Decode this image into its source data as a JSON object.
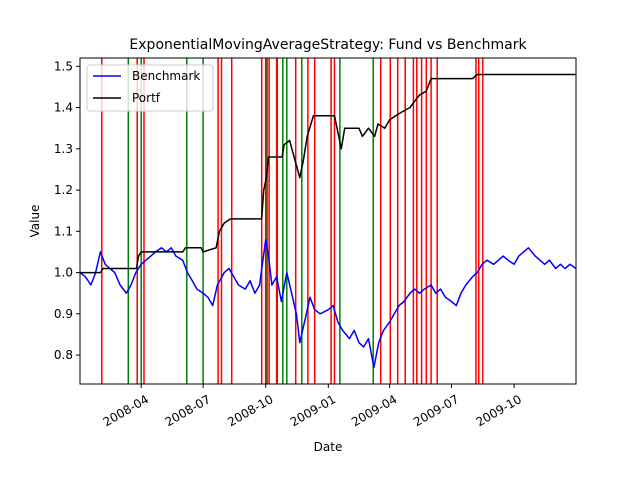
{
  "chart_data": {
    "type": "line",
    "title": "ExponentialMovingAverageStrategy: Fund vs Benchmark",
    "xlabel": "Date",
    "ylabel": "Value",
    "xlim": [
      "2008-01-02",
      "2009-12-31"
    ],
    "ylim": [
      0.73,
      1.52
    ],
    "x_ticks": [
      "2008-04",
      "2008-07",
      "2008-10",
      "2009-01",
      "2009-04",
      "2009-07",
      "2009-10"
    ],
    "y_ticks": [
      0.8,
      0.9,
      1.0,
      1.1,
      1.2,
      1.3,
      1.4,
      1.5
    ],
    "legend_position": "top-left",
    "grid": false,
    "series": [
      {
        "name": "Benchmark",
        "color": "#0000ff",
        "points": [
          [
            "2008-01-02",
            1.0
          ],
          [
            "2008-01-10",
            0.99
          ],
          [
            "2008-01-18",
            0.97
          ],
          [
            "2008-01-25",
            1.0
          ],
          [
            "2008-02-01",
            1.05
          ],
          [
            "2008-02-08",
            1.02
          ],
          [
            "2008-02-15",
            1.01
          ],
          [
            "2008-02-22",
            1.0
          ],
          [
            "2008-03-01",
            0.97
          ],
          [
            "2008-03-10",
            0.95
          ],
          [
            "2008-03-17",
            0.97
          ],
          [
            "2008-03-24",
            1.0
          ],
          [
            "2008-04-01",
            1.02
          ],
          [
            "2008-04-08",
            1.03
          ],
          [
            "2008-04-15",
            1.04
          ],
          [
            "2008-04-22",
            1.05
          ],
          [
            "2008-05-01",
            1.06
          ],
          [
            "2008-05-08",
            1.05
          ],
          [
            "2008-05-15",
            1.06
          ],
          [
            "2008-05-22",
            1.04
          ],
          [
            "2008-06-01",
            1.03
          ],
          [
            "2008-06-08",
            1.0
          ],
          [
            "2008-06-15",
            0.98
          ],
          [
            "2008-06-22",
            0.96
          ],
          [
            "2008-07-01",
            0.95
          ],
          [
            "2008-07-08",
            0.94
          ],
          [
            "2008-07-15",
            0.92
          ],
          [
            "2008-07-22",
            0.97
          ],
          [
            "2008-08-01",
            1.0
          ],
          [
            "2008-08-08",
            1.01
          ],
          [
            "2008-08-15",
            0.99
          ],
          [
            "2008-08-22",
            0.97
          ],
          [
            "2008-09-01",
            0.96
          ],
          [
            "2008-09-08",
            0.98
          ],
          [
            "2008-09-15",
            0.95
          ],
          [
            "2008-09-22",
            0.97
          ],
          [
            "2008-10-01",
            1.08
          ],
          [
            "2008-10-05",
            1.04
          ],
          [
            "2008-10-10",
            0.97
          ],
          [
            "2008-10-17",
            0.99
          ],
          [
            "2008-10-24",
            0.93
          ],
          [
            "2008-11-01",
            1.0
          ],
          [
            "2008-11-08",
            0.95
          ],
          [
            "2008-11-15",
            0.9
          ],
          [
            "2008-11-20",
            0.83
          ],
          [
            "2008-11-27",
            0.88
          ],
          [
            "2008-12-05",
            0.94
          ],
          [
            "2008-12-12",
            0.91
          ],
          [
            "2008-12-20",
            0.9
          ],
          [
            "2009-01-01",
            0.91
          ],
          [
            "2009-01-08",
            0.92
          ],
          [
            "2009-01-15",
            0.88
          ],
          [
            "2009-01-22",
            0.86
          ],
          [
            "2009-02-01",
            0.84
          ],
          [
            "2009-02-08",
            0.86
          ],
          [
            "2009-02-15",
            0.83
          ],
          [
            "2009-02-22",
            0.82
          ],
          [
            "2009-03-01",
            0.84
          ],
          [
            "2009-03-09",
            0.77
          ],
          [
            "2009-03-16",
            0.83
          ],
          [
            "2009-03-23",
            0.86
          ],
          [
            "2009-04-01",
            0.88
          ],
          [
            "2009-04-08",
            0.9
          ],
          [
            "2009-04-15",
            0.92
          ],
          [
            "2009-04-22",
            0.93
          ],
          [
            "2009-05-01",
            0.95
          ],
          [
            "2009-05-08",
            0.96
          ],
          [
            "2009-05-15",
            0.95
          ],
          [
            "2009-05-22",
            0.96
          ],
          [
            "2009-06-01",
            0.97
          ],
          [
            "2009-06-08",
            0.95
          ],
          [
            "2009-06-15",
            0.96
          ],
          [
            "2009-06-22",
            0.94
          ],
          [
            "2009-07-01",
            0.93
          ],
          [
            "2009-07-08",
            0.92
          ],
          [
            "2009-07-15",
            0.95
          ],
          [
            "2009-07-22",
            0.97
          ],
          [
            "2009-08-01",
            0.99
          ],
          [
            "2009-08-08",
            1.0
          ],
          [
            "2009-08-15",
            1.02
          ],
          [
            "2009-08-22",
            1.03
          ],
          [
            "2009-09-01",
            1.02
          ],
          [
            "2009-09-08",
            1.03
          ],
          [
            "2009-09-15",
            1.04
          ],
          [
            "2009-09-22",
            1.03
          ],
          [
            "2009-10-01",
            1.02
          ],
          [
            "2009-10-08",
            1.04
          ],
          [
            "2009-10-15",
            1.05
          ],
          [
            "2009-10-22",
            1.06
          ],
          [
            "2009-11-01",
            1.04
          ],
          [
            "2009-11-08",
            1.03
          ],
          [
            "2009-11-15",
            1.02
          ],
          [
            "2009-11-22",
            1.03
          ],
          [
            "2009-12-01",
            1.01
          ],
          [
            "2009-12-08",
            1.02
          ],
          [
            "2009-12-15",
            1.01
          ],
          [
            "2009-12-22",
            1.02
          ],
          [
            "2009-12-31",
            1.01
          ]
        ]
      },
      {
        "name": "Portf",
        "color": "#000000",
        "points": [
          [
            "2008-01-02",
            1.0
          ],
          [
            "2008-02-01",
            1.0
          ],
          [
            "2008-02-05",
            1.01
          ],
          [
            "2008-03-25",
            1.01
          ],
          [
            "2008-03-28",
            1.04
          ],
          [
            "2008-04-01",
            1.05
          ],
          [
            "2008-06-01",
            1.05
          ],
          [
            "2008-06-05",
            1.06
          ],
          [
            "2008-06-28",
            1.06
          ],
          [
            "2008-07-01",
            1.05
          ],
          [
            "2008-07-20",
            1.06
          ],
          [
            "2008-07-25",
            1.1
          ],
          [
            "2008-08-01",
            1.12
          ],
          [
            "2008-08-10",
            1.13
          ],
          [
            "2008-09-25",
            1.13
          ],
          [
            "2008-09-28",
            1.2
          ],
          [
            "2008-10-02",
            1.23
          ],
          [
            "2008-10-05",
            1.28
          ],
          [
            "2008-10-25",
            1.28
          ],
          [
            "2008-10-28",
            1.31
          ],
          [
            "2008-11-05",
            1.32
          ],
          [
            "2008-11-10",
            1.29
          ],
          [
            "2008-11-15",
            1.26
          ],
          [
            "2008-11-20",
            1.23
          ],
          [
            "2008-11-25",
            1.27
          ],
          [
            "2008-12-01",
            1.33
          ],
          [
            "2008-12-10",
            1.38
          ],
          [
            "2009-01-10",
            1.38
          ],
          [
            "2009-01-15",
            1.34
          ],
          [
            "2009-01-20",
            1.3
          ],
          [
            "2009-01-25",
            1.35
          ],
          [
            "2009-02-15",
            1.35
          ],
          [
            "2009-02-20",
            1.33
          ],
          [
            "2009-03-01",
            1.35
          ],
          [
            "2009-03-10",
            1.33
          ],
          [
            "2009-03-15",
            1.36
          ],
          [
            "2009-03-25",
            1.35
          ],
          [
            "2009-04-01",
            1.37
          ],
          [
            "2009-04-10",
            1.38
          ],
          [
            "2009-04-20",
            1.39
          ],
          [
            "2009-05-01",
            1.4
          ],
          [
            "2009-05-10",
            1.42
          ],
          [
            "2009-05-15",
            1.43
          ],
          [
            "2009-05-25",
            1.44
          ],
          [
            "2009-06-01",
            1.47
          ],
          [
            "2009-08-01",
            1.47
          ],
          [
            "2009-08-08",
            1.48
          ],
          [
            "2009-12-31",
            1.48
          ]
        ]
      }
    ],
    "vlines": {
      "red": [
        "2008-02-03",
        "2008-03-26",
        "2008-04-05",
        "2008-07-23",
        "2008-07-28",
        "2008-08-12",
        "2008-09-25",
        "2008-10-01",
        "2008-10-06",
        "2008-10-17",
        "2008-11-14",
        "2008-12-02",
        "2008-12-12",
        "2009-01-05",
        "2009-01-10",
        "2009-03-19",
        "2009-04-02",
        "2009-04-13",
        "2009-04-24",
        "2009-05-06",
        "2009-05-11",
        "2009-05-18",
        "2009-05-25",
        "2009-06-01",
        "2009-06-10",
        "2009-08-06",
        "2009-08-10",
        "2009-08-16"
      ],
      "green": [
        "2008-03-13",
        "2008-04-01",
        "2008-06-07",
        "2008-07-01",
        "2008-10-03",
        "2008-10-18",
        "2008-10-26",
        "2008-11-01",
        "2008-11-23",
        "2009-01-18",
        "2009-03-08"
      ]
    }
  }
}
